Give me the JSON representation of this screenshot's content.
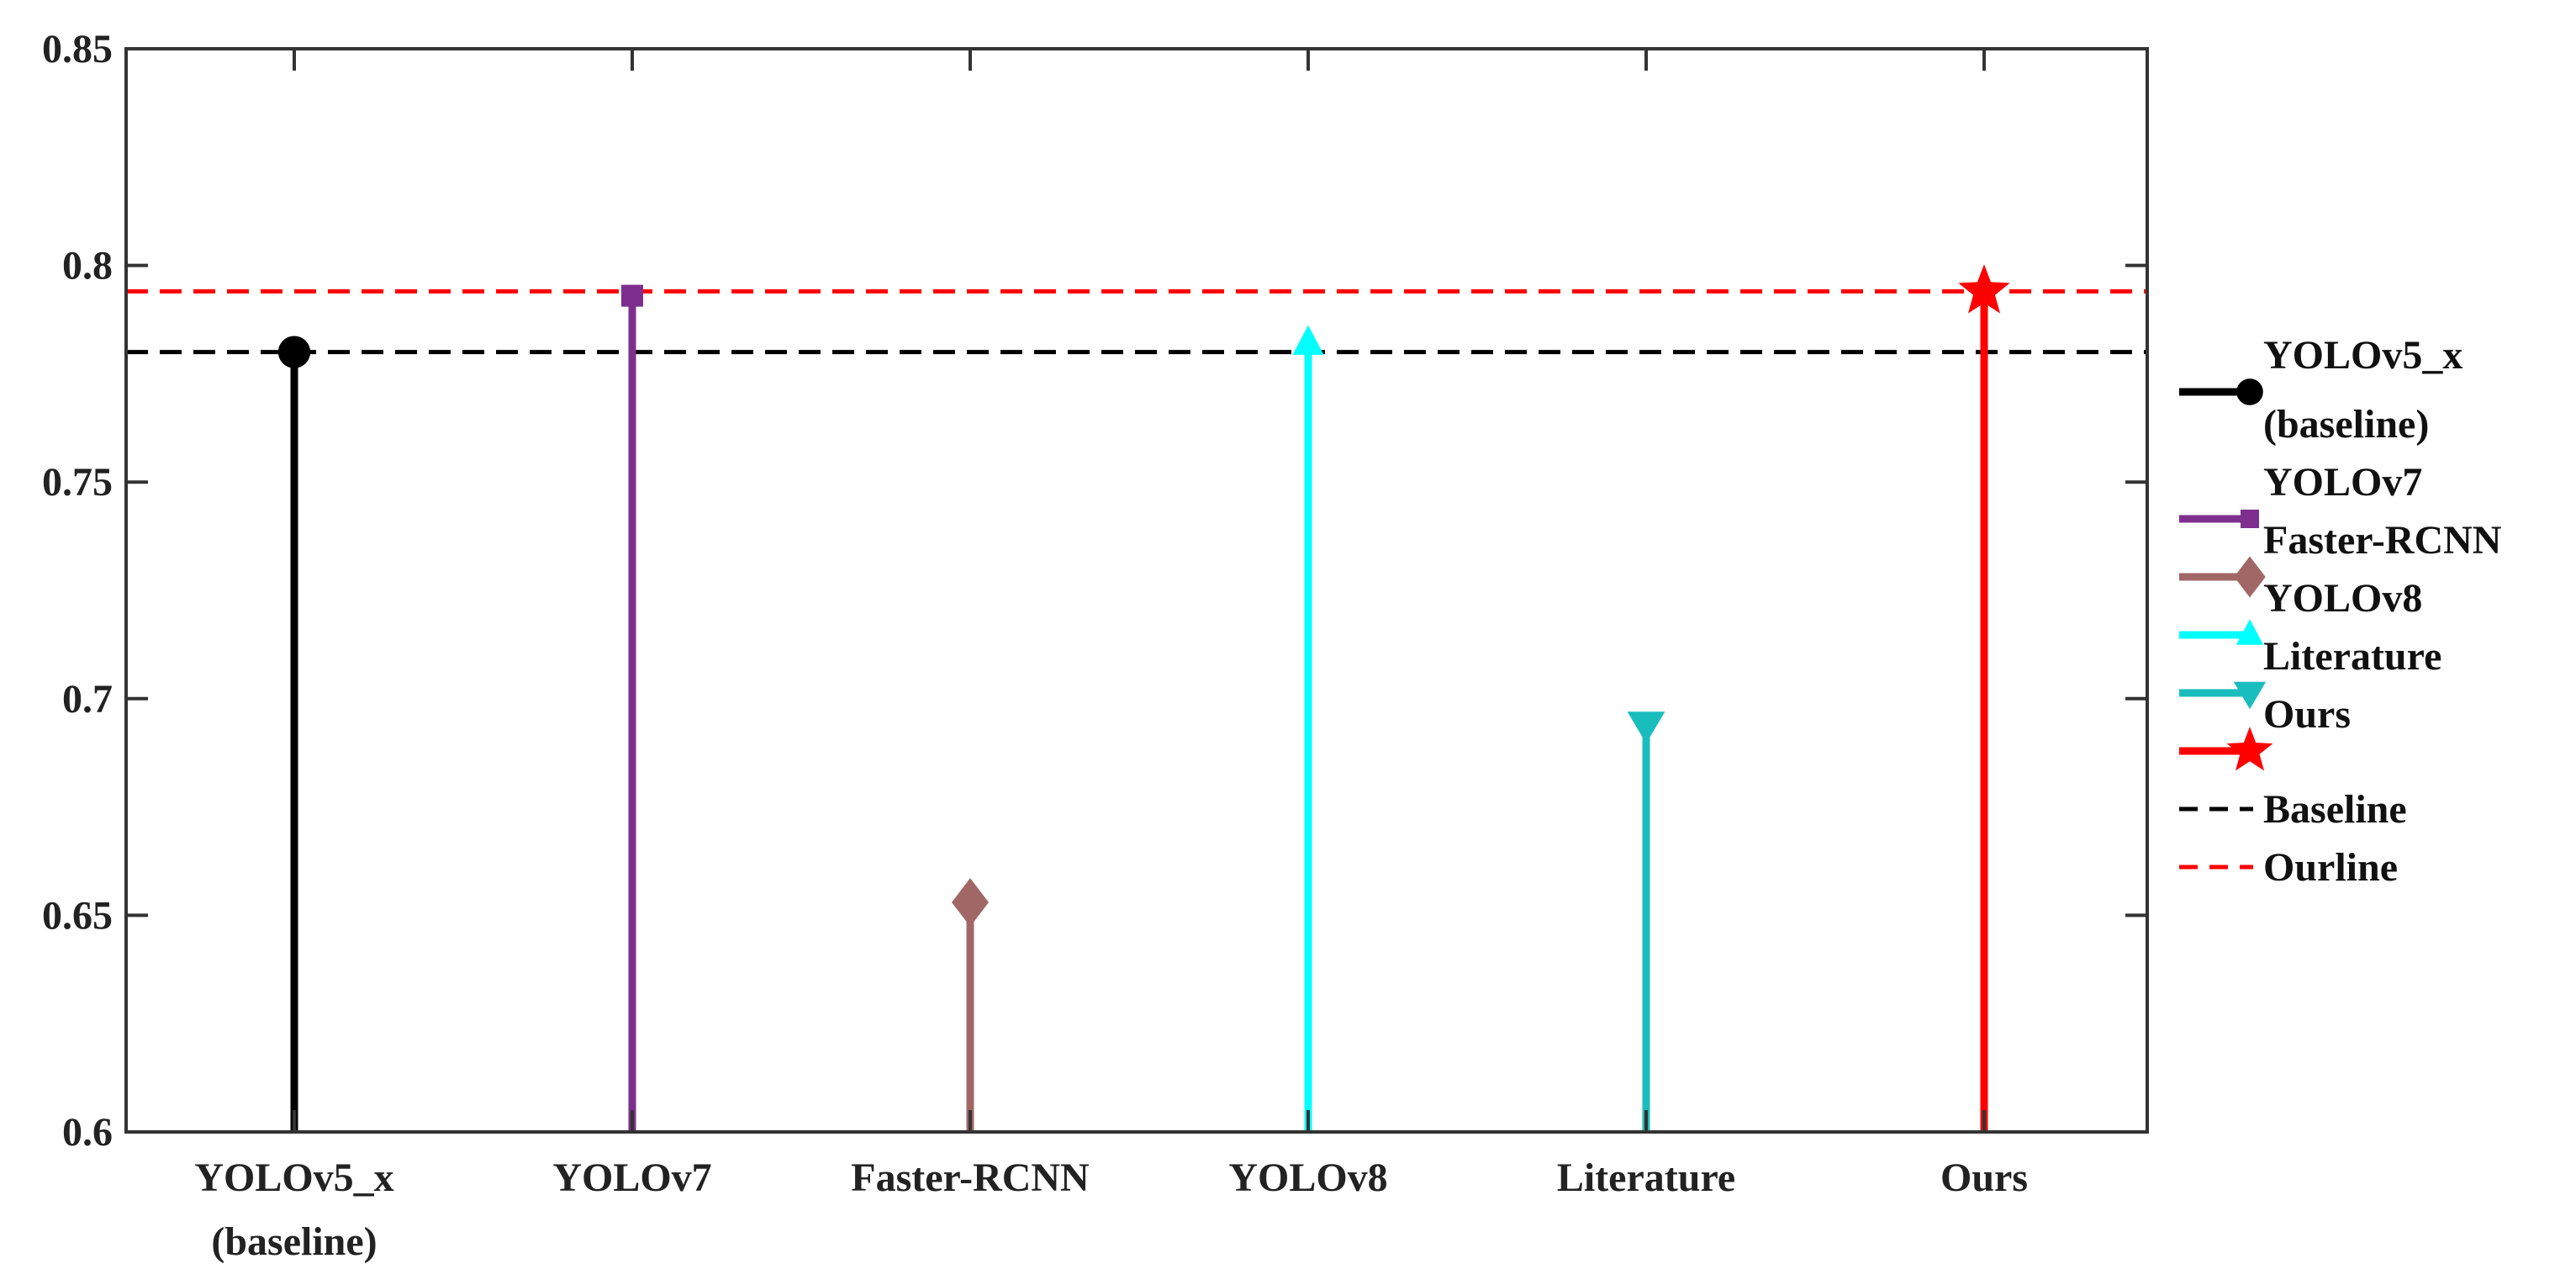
{
  "chart_data": {
    "type": "stem",
    "categories": [
      "YOLOv5_x (baseline)",
      "YOLOv7",
      "Faster-RCNN",
      "YOLOv8",
      "Literature",
      "Ours"
    ],
    "category_tick_labels": [
      [
        "YOLOv5_x",
        "(baseline)"
      ],
      [
        "YOLOv7"
      ],
      [
        "Faster-RCNN"
      ],
      [
        "YOLOv8"
      ],
      [
        "Literature"
      ],
      [
        "Ours"
      ]
    ],
    "series": [
      {
        "name": "YOLOv5_x (baseline)",
        "legend_lines": [
          "YOLOv5_x",
          "(baseline)"
        ],
        "category": "YOLOv5_x (baseline)",
        "value": 0.78,
        "color": "#000000",
        "marker": "circle",
        "marker_fill": "#000000"
      },
      {
        "name": "YOLOv7",
        "legend_lines": [
          "YOLOv7"
        ],
        "category": "YOLOv7",
        "value": 0.793,
        "color": "#7E2F8E",
        "marker": "square",
        "marker_fill": "#7E2F8E"
      },
      {
        "name": "Faster-RCNN",
        "legend_lines": [
          "Faster-RCNN"
        ],
        "category": "Faster-RCNN",
        "value": 0.653,
        "color": "#A16767",
        "marker": "diamond",
        "marker_fill": "#A16767"
      },
      {
        "name": "YOLOv8",
        "legend_lines": [
          "YOLOv8"
        ],
        "category": "YOLOv8",
        "value": 0.782,
        "color": "#00FFFF",
        "marker": "triangle-up",
        "marker_fill": "#00FFFF"
      },
      {
        "name": "Literature",
        "legend_lines": [
          "Literature"
        ],
        "category": "Literature",
        "value": 0.694,
        "color": "#1ABDBD",
        "marker": "triangle-down",
        "marker_fill": "#1ABDBD"
      },
      {
        "name": "Ours",
        "legend_lines": [
          "Ours"
        ],
        "category": "Ours",
        "value": 0.794,
        "color": "#FF0000",
        "marker": "star",
        "marker_fill": "#FF0000"
      }
    ],
    "reference_lines": [
      {
        "name": "Baseline",
        "value": 0.78,
        "color": "#000000",
        "style": "dashed"
      },
      {
        "name": "Ourline",
        "value": 0.794,
        "color": "#FF0000",
        "style": "dashed"
      }
    ],
    "ylim": [
      0.6,
      0.85
    ],
    "yticks": [
      0.6,
      0.65,
      0.7,
      0.75,
      0.8,
      0.85
    ],
    "ytick_labels": [
      "0.6",
      "0.65",
      "0.7",
      "0.75",
      "0.8",
      "0.85"
    ],
    "grid": false,
    "legend_position": "outside-right",
    "title": "",
    "xlabel": "",
    "ylabel": ""
  }
}
